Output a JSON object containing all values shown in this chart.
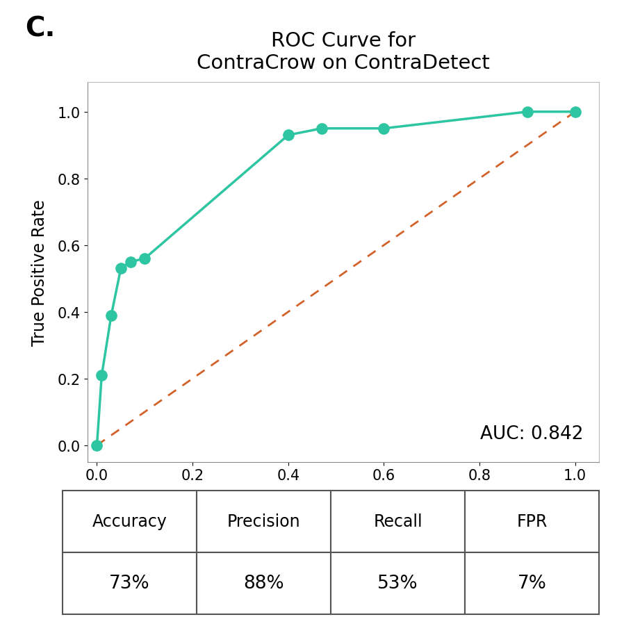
{
  "title": "ROC Curve for\nContraCrow on ContraDetect",
  "label_c": "C.",
  "xlabel": "False Positive Rate",
  "ylabel": "True Positive Rate",
  "auc_text": "AUC: 0.842",
  "roc_fpr": [
    0.0,
    0.01,
    0.03,
    0.05,
    0.07,
    0.1,
    0.4,
    0.47,
    0.6,
    0.9,
    1.0
  ],
  "roc_tpr": [
    0.0,
    0.21,
    0.39,
    0.53,
    0.55,
    0.56,
    0.93,
    0.95,
    0.95,
    1.0,
    1.0
  ],
  "roc_color": "#2DC5A2",
  "diag_color": "#D2622A",
  "line_width": 2.5,
  "marker_size": 11,
  "title_fontsize": 21,
  "label_fontsize": 28,
  "axis_label_fontsize": 17,
  "tick_fontsize": 15,
  "auc_fontsize": 19,
  "table_headers": [
    "Accuracy",
    "Precision",
    "Recall",
    "FPR"
  ],
  "table_values": [
    "73%",
    "88%",
    "53%",
    "7%"
  ],
  "background_color": "#ffffff",
  "xlim": [
    -0.02,
    1.05
  ],
  "ylim": [
    -0.05,
    1.09
  ]
}
